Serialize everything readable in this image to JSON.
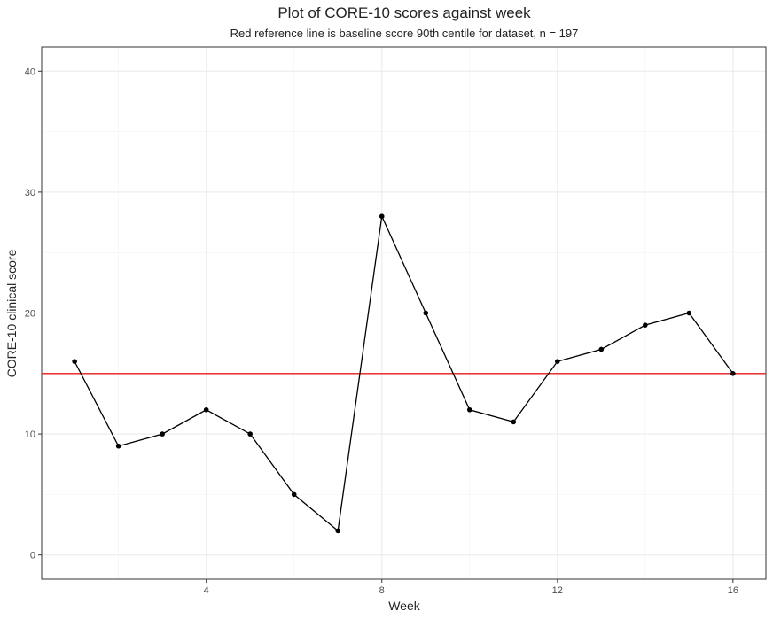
{
  "chart_data": {
    "type": "line",
    "title": "Plot of CORE-10 scores against week",
    "subtitle": "Red reference line is baseline score 90th centile for dataset, n = 197",
    "x_label": "Week",
    "y_label": "CORE-10 clinical score",
    "x": [
      1,
      2,
      3,
      4,
      5,
      6,
      7,
      8,
      9,
      10,
      11,
      12,
      13,
      14,
      15,
      16
    ],
    "series": [
      {
        "color": "#000000",
        "values": [
          16,
          9,
          10,
          12,
          10,
          5,
          2,
          28,
          20,
          12,
          11,
          16,
          17,
          19,
          20,
          15
        ]
      }
    ],
    "reference_line": {
      "value": 15,
      "color": "#e41a1c"
    },
    "xlim": [
      0.25,
      16.75
    ],
    "ylim": [
      -2,
      42
    ],
    "xticks": [
      4,
      8,
      12,
      16
    ],
    "yticks": [
      0,
      10,
      20,
      30,
      40
    ],
    "minor_xticks": [
      2,
      6,
      10,
      14
    ],
    "minor_yticks": [
      5,
      15,
      25,
      35
    ],
    "grid": true
  }
}
